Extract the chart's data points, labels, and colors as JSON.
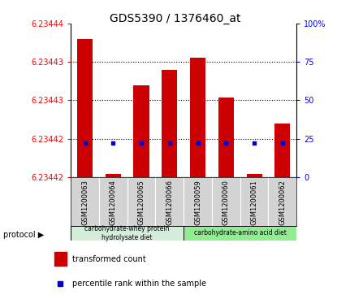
{
  "title": "GDS5390 / 1376460_at",
  "samples": [
    "GSM1200063",
    "GSM1200064",
    "GSM1200065",
    "GSM1200066",
    "GSM1200059",
    "GSM1200060",
    "GSM1200061",
    "GSM1200062"
  ],
  "percentile_bar": [
    90,
    2,
    60,
    70,
    78,
    52,
    2,
    35
  ],
  "percentile_rank": [
    22,
    22,
    22,
    22,
    22,
    22,
    22,
    22
  ],
  "ylim_min": 6.234215,
  "ylim_max": 6.234445,
  "ytick_labels": [
    "6.23442",
    "6.23442",
    "6.23443",
    "6.23443",
    "6.23444"
  ],
  "right_yticks": [
    0,
    25,
    50,
    75,
    100
  ],
  "protocol_label1": "carbohydrate-whey protein\nhydrolysate diet",
  "protocol_label2": "carbohydrate-amino acid diet",
  "protocol_color1": "#d4edda",
  "protocol_color2": "#90ee90",
  "bar_color": "#cc0000",
  "dot_color": "#0000cc",
  "legend_bar_label": "transformed count",
  "legend_dot_label": "percentile rank within the sample",
  "background_color": "#d3d3d3",
  "plot_bg_color": "#ffffff"
}
